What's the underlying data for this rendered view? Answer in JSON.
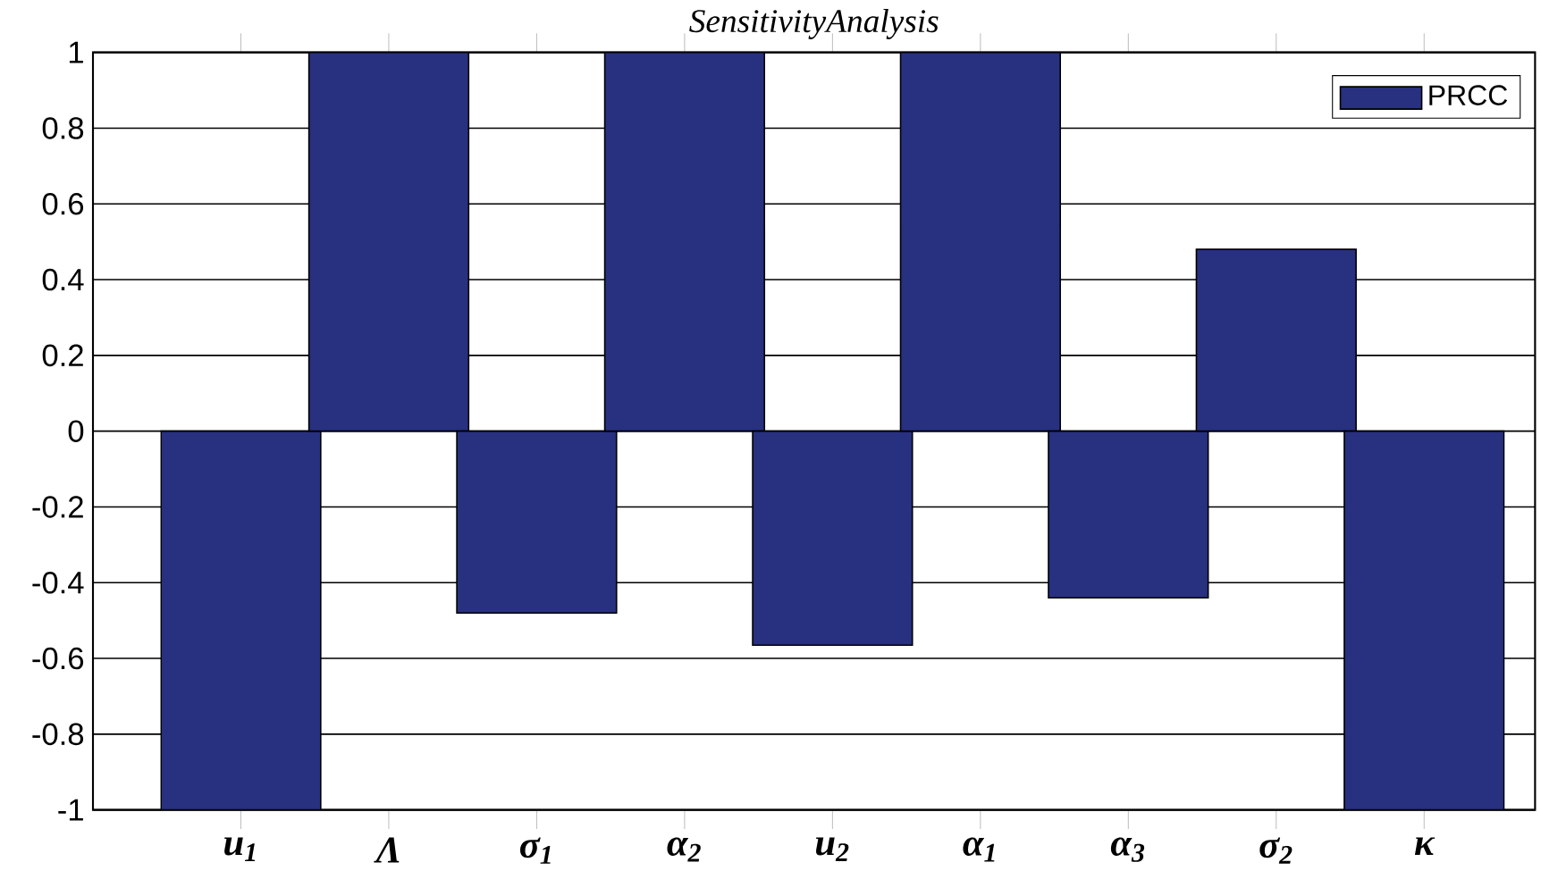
{
  "chart_data": {
    "type": "bar",
    "title": "SensitivityAnalysis",
    "categories": [
      "u$_{1}$",
      "Λ",
      "σ$_{1}$",
      "α$_{2}$",
      "u$_{2}$",
      "α$_{1}$",
      "α$_{3}$",
      "σ$_{2}$",
      "κ"
    ],
    "series": [
      {
        "name": "PRCC",
        "color": "#283080",
        "values": [
          -1,
          1,
          -0.48,
          1,
          -0.565,
          1,
          -0.44,
          0.48,
          -1
        ]
      }
    ],
    "ylim": [
      -1,
      1
    ],
    "yticks": [
      -1,
      -0.8,
      -0.6,
      -0.4,
      -0.2,
      0,
      0.2,
      0.4,
      0.6,
      0.8,
      1
    ],
    "grid": "y",
    "legend": "top right"
  }
}
